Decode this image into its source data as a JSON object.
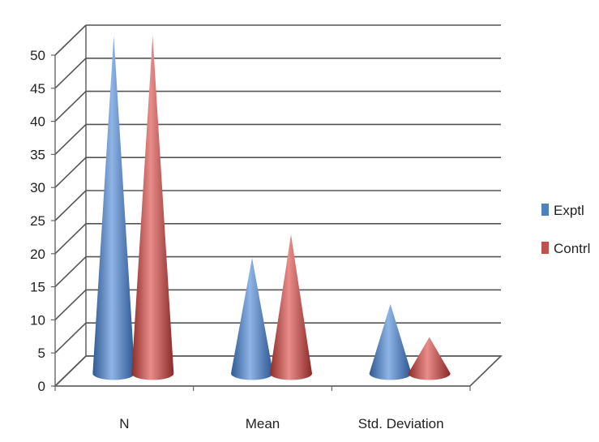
{
  "chart_data": {
    "type": "bar",
    "style": "3d-cone",
    "categories": [
      "N",
      "Mean",
      "Std. Deviation"
    ],
    "series": [
      {
        "name": "Exptl",
        "values": [
          51,
          17.5,
          10.5
        ],
        "color": "#4F81BD"
      },
      {
        "name": "Contrl",
        "values": [
          51,
          21,
          5.5
        ],
        "color": "#C0504D"
      }
    ],
    "ylim": [
      0,
      50
    ],
    "yticks": [
      0,
      5,
      10,
      15,
      20,
      25,
      30,
      35,
      40,
      45,
      50
    ],
    "grid": true,
    "legend": "right"
  }
}
